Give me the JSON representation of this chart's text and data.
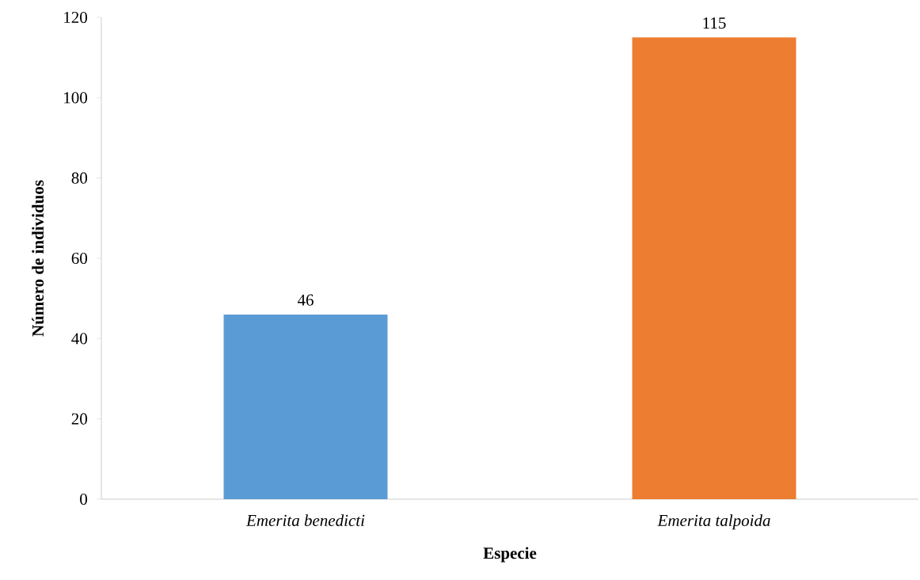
{
  "chart_data": {
    "type": "bar",
    "xlabel": "Especie",
    "ylabel": "Número de individuos",
    "categories": [
      "Emerita benedicti",
      "Emerita talpoida"
    ],
    "values": [
      46,
      115
    ],
    "colors": [
      "#5b9bd5",
      "#ed7d31"
    ],
    "ylim": [
      0,
      120
    ],
    "yticks": [
      0,
      20,
      40,
      60,
      80,
      100,
      120
    ],
    "data_labels": true,
    "grid": false
  }
}
